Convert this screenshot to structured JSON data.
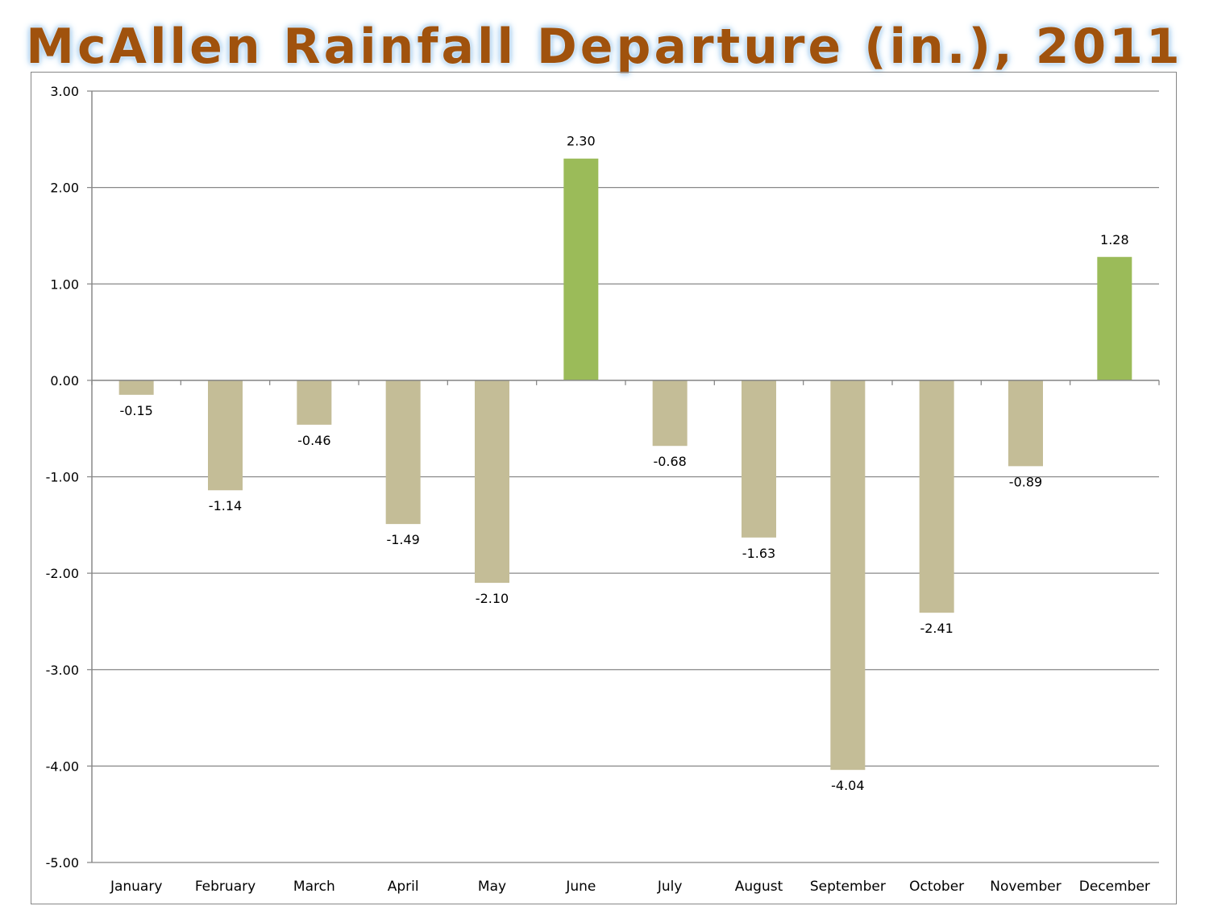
{
  "chart_data": {
    "type": "bar",
    "title": "McAllen Rainfall Departure (in.), 2011",
    "xlabel": "",
    "ylabel": "",
    "categories": [
      "January",
      "February",
      "March",
      "April",
      "May",
      "June",
      "July",
      "August",
      "September",
      "October",
      "November",
      "December"
    ],
    "values": [
      -0.15,
      -1.14,
      -0.46,
      -1.49,
      -2.1,
      2.3,
      -0.68,
      -1.63,
      -4.04,
      -2.41,
      -0.89,
      1.28
    ],
    "value_labels": [
      "-0.15",
      "-1.14",
      "-0.46",
      "-1.49",
      "-2.10",
      "2.30",
      "-0.68",
      "-1.63",
      "-4.04",
      "-2.41",
      "-0.89",
      "1.28"
    ],
    "ylim": [
      -5,
      3
    ],
    "yticks": [
      3,
      2,
      1,
      0,
      -1,
      -2,
      -3,
      -4,
      -5
    ],
    "ytick_labels": [
      "3.00",
      "2.00",
      "1.00",
      "0.00",
      "-1.00",
      "-2.00",
      "-3.00",
      "-4.00",
      "-5.00"
    ],
    "grid": true,
    "colors": {
      "positive": "#9bbb59",
      "negative": "#c4bd97",
      "gridline": "#888888",
      "title": "#a0520d"
    }
  }
}
